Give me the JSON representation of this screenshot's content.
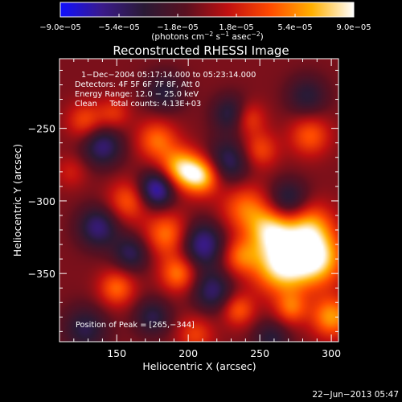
{
  "chart_data": {
    "type": "heatmap",
    "title": "Reconstructed RHESSI Image",
    "xlabel": "Heliocentric X (arcsec)",
    "ylabel": "Heliocentric Y (arcsec)",
    "xlim": [
      110,
      305
    ],
    "ylim": [
      -397,
      -202
    ],
    "x_ticks": [
      150,
      200,
      250,
      300
    ],
    "y_ticks": [
      -250,
      -300,
      -350
    ],
    "x_tick_labels": [
      "150",
      "200",
      "250",
      "300"
    ],
    "y_tick_labels": [
      "−250",
      "−300",
      "−350"
    ],
    "colorbar": {
      "min": -9e-05,
      "max": 9e-05,
      "tick_labels": [
        "−9.0e−05",
        "−5.4e−05",
        "−1.8e−05",
        "1.8e−05",
        "5.4e−05",
        "9.0e−05"
      ],
      "tick_values": [
        -9e-05,
        -5.4e-05,
        -1.8e-05,
        1.8e-05,
        5.4e-05,
        9e-05
      ],
      "colors": [
        "#1010ff",
        "#3a1a8a",
        "#2a1a35",
        "#5a1020",
        "#c01010",
        "#ff4a00",
        "#ffb000",
        "#ffffff"
      ]
    },
    "unit_label": {
      "open": "(photons cm",
      "exp1": "−2",
      "mid1": " s",
      "exp2": "−1",
      "mid2": " asec",
      "exp3": "−2",
      "close": ")"
    },
    "annotations": [
      "1−Dec−2004 05:17:14.000 to 05:23:14.000",
      "Detectors: 4F 5F 6F 7F 8F, Att 0",
      "Energy Range: 12.0 − 25.0 keV",
      "Clean     Total counts: 4.13E+03"
    ],
    "peak_label": "Position of Peak = [265,−344]",
    "peak": [
      265,
      -344
    ],
    "sources": [
      {
        "x": 265,
        "y": -344,
        "amp": 1.0,
        "w": 14
      },
      {
        "x": 290,
        "y": -340,
        "amp": 0.9,
        "w": 13
      },
      {
        "x": 284,
        "y": -318,
        "amp": 0.7,
        "w": 12
      },
      {
        "x": 195,
        "y": -278,
        "amp": 0.85,
        "w": 10
      },
      {
        "x": 210,
        "y": -283,
        "amp": 0.8,
        "w": 9
      },
      {
        "x": 178,
        "y": -258,
        "amp": 0.55,
        "w": 10
      },
      {
        "x": 158,
        "y": -300,
        "amp": 0.5,
        "w": 10
      },
      {
        "x": 185,
        "y": -323,
        "amp": 0.6,
        "w": 11
      },
      {
        "x": 240,
        "y": -305,
        "amp": 0.55,
        "w": 12
      },
      {
        "x": 258,
        "y": -320,
        "amp": 0.75,
        "w": 11
      },
      {
        "x": 236,
        "y": -338,
        "amp": 0.5,
        "w": 9
      },
      {
        "x": 250,
        "y": -265,
        "amp": 0.45,
        "w": 9
      },
      {
        "x": 285,
        "y": -255,
        "amp": 0.5,
        "w": 10
      },
      {
        "x": 242,
        "y": -243,
        "amp": 0.45,
        "w": 8
      },
      {
        "x": 300,
        "y": -380,
        "amp": 0.7,
        "w": 10
      },
      {
        "x": 272,
        "y": -374,
        "amp": 0.5,
        "w": 8
      },
      {
        "x": 150,
        "y": -360,
        "amp": 0.55,
        "w": 9
      },
      {
        "x": 193,
        "y": -350,
        "amp": 0.6,
        "w": 9
      },
      {
        "x": 235,
        "y": -375,
        "amp": 0.5,
        "w": 8
      },
      {
        "x": 205,
        "y": -392,
        "amp": 0.4,
        "w": 9
      },
      {
        "x": 128,
        "y": -245,
        "amp": 0.45,
        "w": 9
      },
      {
        "x": 148,
        "y": -240,
        "amp": 0.35,
        "w": 8
      },
      {
        "x": 118,
        "y": -280,
        "amp": 0.25,
        "w": 8
      },
      {
        "x": 178,
        "y": -292,
        "amp": -0.85,
        "w": 9
      },
      {
        "x": 140,
        "y": -262,
        "amp": -0.6,
        "w": 10
      },
      {
        "x": 228,
        "y": -273,
        "amp": -0.55,
        "w": 11
      },
      {
        "x": 137,
        "y": -318,
        "amp": -0.6,
        "w": 10
      },
      {
        "x": 160,
        "y": -336,
        "amp": -0.5,
        "w": 9
      },
      {
        "x": 210,
        "y": -330,
        "amp": -0.7,
        "w": 11
      },
      {
        "x": 217,
        "y": -362,
        "amp": -0.55,
        "w": 10
      },
      {
        "x": 270,
        "y": -300,
        "amp": -0.55,
        "w": 10
      },
      {
        "x": 283,
        "y": -228,
        "amp": -0.4,
        "w": 10
      },
      {
        "x": 230,
        "y": -240,
        "amp": -0.5,
        "w": 9
      },
      {
        "x": 128,
        "y": -388,
        "amp": -0.45,
        "w": 11
      },
      {
        "x": 175,
        "y": -380,
        "amp": -0.45,
        "w": 9
      },
      {
        "x": 258,
        "y": -395,
        "amp": -0.4,
        "w": 9
      },
      {
        "x": 183,
        "y": -225,
        "amp": -0.4,
        "w": 10
      }
    ]
  },
  "footer": {
    "date": "22−Jun−2013 05:47"
  }
}
